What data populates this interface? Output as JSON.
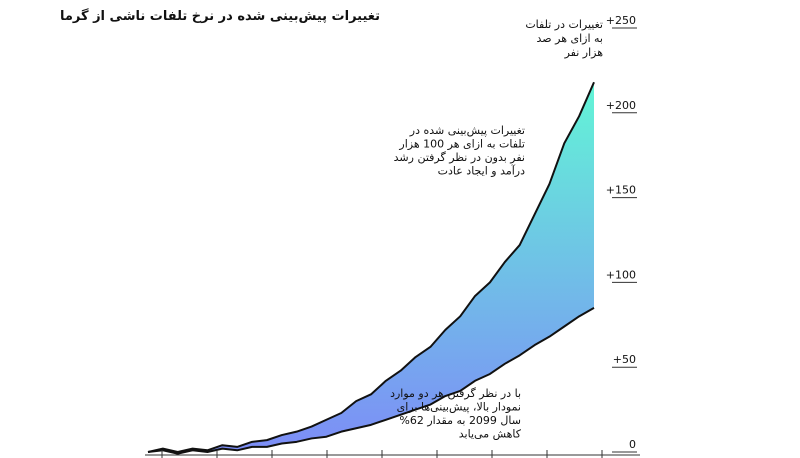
{
  "chart_data": {
    "type": "line",
    "title": "تغییرات پیش‌بینی شده در نرخ تلفات ناشی از گرما",
    "y_axis_label": [
      "تغییرات در تلفات",
      "به ازای هر صد",
      "هزار نفر"
    ],
    "annotations": [
      [
        "تغییرات پیش‌بینی شده در",
        "تلفات به ازای هر 100 هزار",
        "نفر بدون در نظر گرفتن رشد",
        "درآمد و ایجاد عادت"
      ],
      [
        "با در نظر گرفتن هر دو موارد",
        "نمودار بالا، پیش‌بینی‌ها برای",
        "سال 2099 به مقدار 62%",
        "کاهش می‌یابد"
      ]
    ],
    "series": [
      {
        "color": "#111111",
        "values": [
          0,
          2,
          0,
          2,
          1,
          4,
          3,
          6,
          7,
          10,
          12,
          15,
          19,
          23,
          30,
          34,
          42,
          48,
          56,
          62,
          72,
          80,
          92,
          100,
          112,
          122,
          140,
          158,
          182,
          198,
          218
        ]
      },
      {
        "color": "#111111",
        "values": [
          0,
          1,
          -1,
          1,
          0,
          2,
          1,
          3,
          3,
          5,
          6,
          8,
          9,
          12,
          14,
          16,
          19,
          22,
          25,
          28,
          33,
          36,
          42,
          46,
          52,
          57,
          63,
          68,
          74,
          80,
          85
        ]
      }
    ],
    "fill_gradient": [
      "#62f5d6",
      "#7d8cf7"
    ],
    "ylim": [
      0,
      250
    ],
    "yticks": [
      0,
      {
        "value": 50,
        "label": "+50"
      },
      {
        "value": 100,
        "label": "+100"
      },
      {
        "value": 150,
        "label": "+150"
      },
      {
        "value": 200,
        "label": "+200"
      },
      {
        "value": 250,
        "label": "+250"
      }
    ]
  }
}
